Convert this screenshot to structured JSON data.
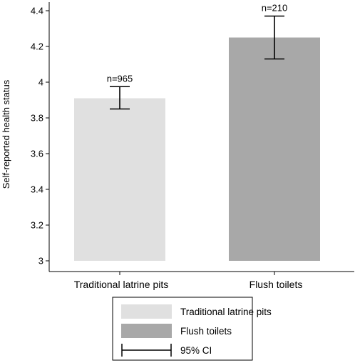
{
  "chart_data": {
    "type": "bar",
    "ylabel": "Self-reported health status",
    "ylim": [
      3,
      4.45
    ],
    "yticks": [
      3,
      3.2,
      3.4,
      3.6,
      3.8,
      4,
      4.2,
      4.4
    ],
    "ytick_labels": [
      "3",
      "3.2",
      "3.4",
      "3.6",
      "3.8",
      "4",
      "4.2",
      "4.4"
    ],
    "categories": [
      "Traditional latrine pits",
      "Flush toilets"
    ],
    "values": [
      3.91,
      4.25
    ],
    "ci_low": [
      3.85,
      4.13
    ],
    "ci_high": [
      3.975,
      4.37
    ],
    "bar_labels": [
      "n=965",
      "n=210"
    ],
    "colors": [
      "#e0e0e0",
      "#a8a8a8"
    ],
    "grid": false,
    "legend": {
      "placement": "bottom",
      "items": [
        "Traditional latrine pits",
        "Flush toilets",
        "95% CI"
      ]
    }
  }
}
